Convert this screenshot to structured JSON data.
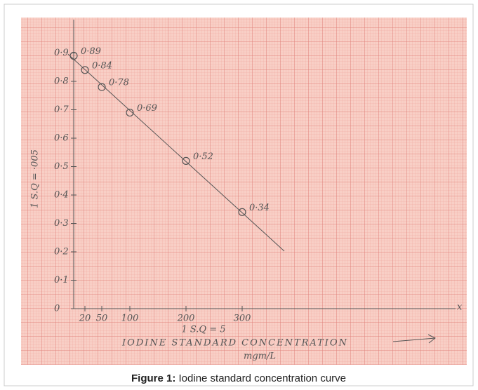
{
  "chart_data": {
    "type": "scatter",
    "x": [
      0,
      20,
      50,
      100,
      200,
      300
    ],
    "values": [
      0.89,
      0.84,
      0.78,
      0.69,
      0.52,
      0.34
    ],
    "value_labels": [
      "0·89",
      "0·84",
      "0·78",
      "0·69",
      "0·52",
      "0·34"
    ],
    "color": "#555555",
    "xlim": [
      0,
      680
    ],
    "ylim": [
      0,
      1
    ],
    "xticks": [
      20,
      50,
      100,
      200,
      300
    ],
    "yticks": [
      0,
      {
        "value": 0.1,
        "label": "0·1"
      },
      {
        "value": 0.2,
        "label": "0·2"
      },
      {
        "value": 0.3,
        "label": "0·3"
      },
      {
        "value": 0.4,
        "label": "0·4"
      },
      {
        "value": 0.5,
        "label": "0·5"
      },
      {
        "value": 0.6,
        "label": "0·6"
      },
      {
        "value": 0.7,
        "label": "0·7"
      },
      {
        "value": 0.8,
        "label": "0·8"
      },
      {
        "value": 0.9,
        "label": "0·9"
      }
    ],
    "x_axis_end": "x",
    "xscale_note": "1 S.Q = 5",
    "xlabel": "IODINE STANDARD CONCENTRATION",
    "xunit": "mgm/L",
    "yscale_note": "1 S.Q = ·005"
  },
  "caption": {
    "label": "Figure 1:",
    "text": "Iodine standard concentration curve"
  }
}
